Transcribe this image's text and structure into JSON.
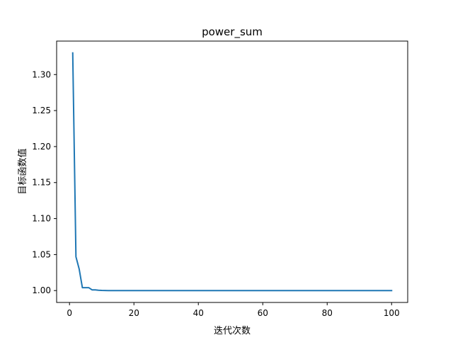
{
  "chart_data": {
    "type": "line",
    "title": "power_sum",
    "xlabel": "迭代次数",
    "ylabel": "目标函数值",
    "xlim": [
      -4,
      105
    ],
    "ylim": [
      0.9835,
      1.3465
    ],
    "x_ticks": [
      0,
      20,
      40,
      60,
      80,
      100
    ],
    "x_tick_labels": [
      "0",
      "20",
      "40",
      "60",
      "80",
      "100"
    ],
    "y_ticks": [
      1.0,
      1.05,
      1.1,
      1.15,
      1.2,
      1.25,
      1.3
    ],
    "y_tick_labels": [
      "1.00",
      "1.05",
      "1.10",
      "1.15",
      "1.20",
      "1.25",
      "1.30"
    ],
    "grid": false,
    "series": [
      {
        "color": "#1f77b4",
        "x": [
          1,
          2,
          3,
          4,
          5,
          6,
          7,
          8,
          9,
          10,
          11,
          12,
          15,
          20,
          30,
          40,
          50,
          60,
          70,
          80,
          90,
          100
        ],
        "values": [
          1.33,
          1.047,
          1.03,
          1.004,
          1.004,
          1.004,
          1.001,
          1.001,
          1.0005,
          1.0002,
          1.0001,
          1.0,
          1.0,
          1.0,
          1.0,
          1.0,
          1.0,
          1.0,
          1.0,
          1.0,
          1.0,
          1.0
        ]
      }
    ]
  }
}
